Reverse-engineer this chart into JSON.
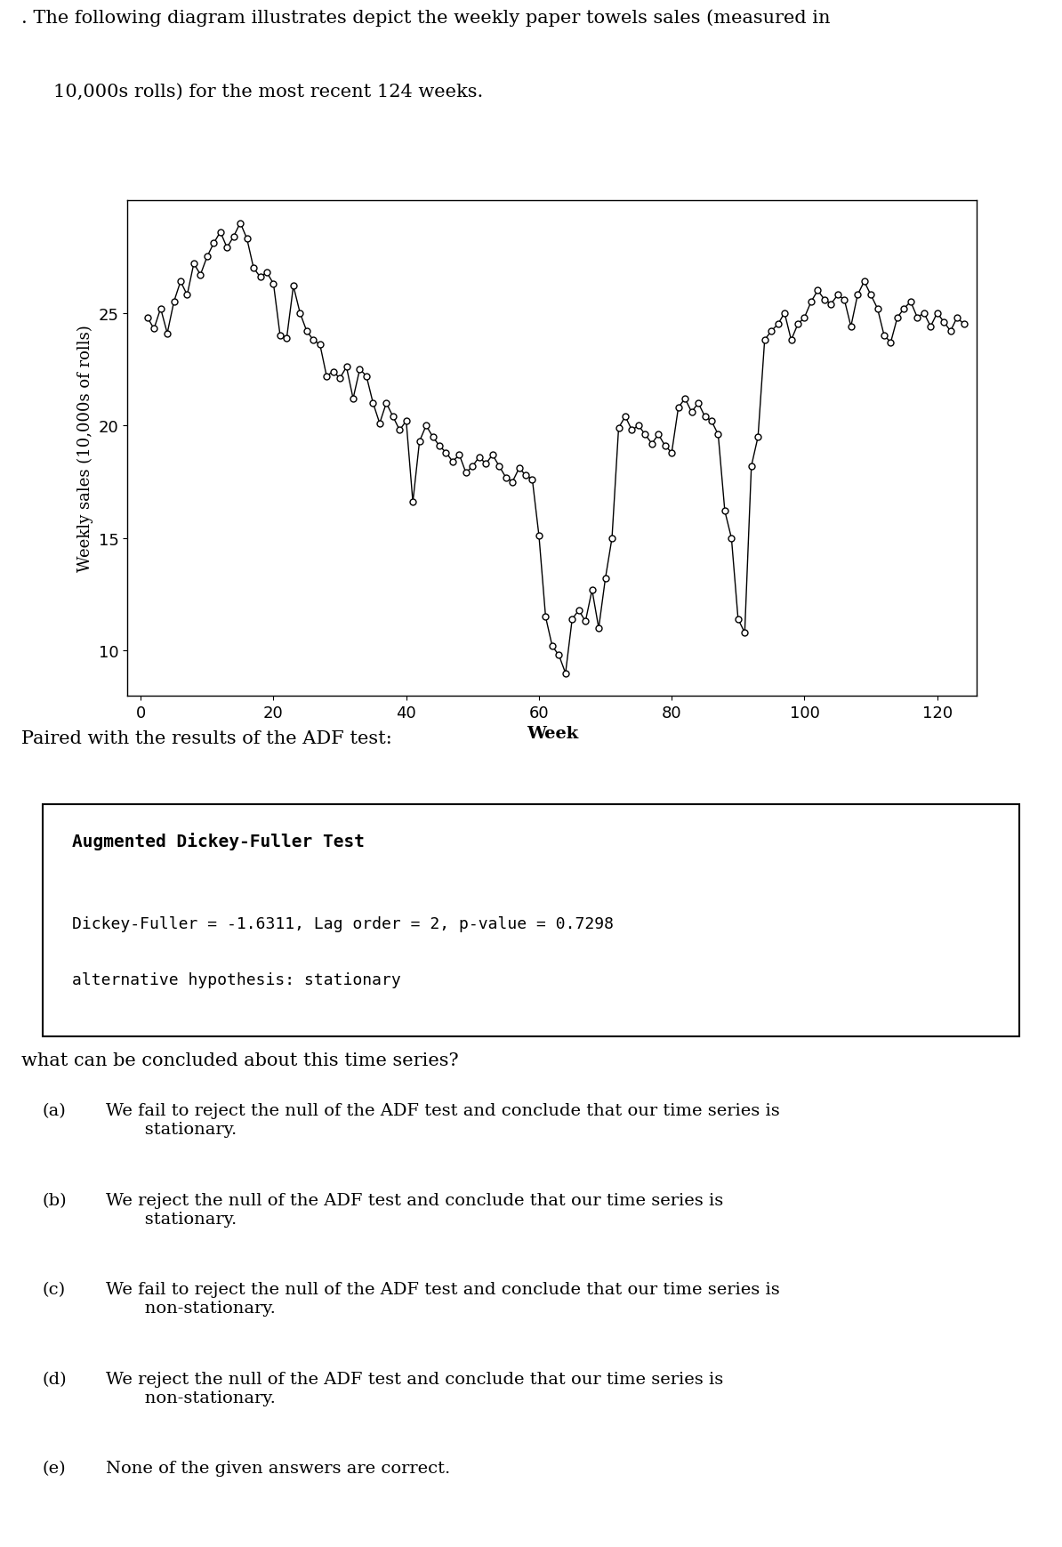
{
  "title_text": ". The following diagram illustrates depict the weekly paper towels sales (measured in\n  10,000s rolls) for the most recent 124 weeks.",
  "xlabel": "Week",
  "ylabel": "Weekly sales (10,000s of rolls)",
  "xlim": [
    -2,
    126
  ],
  "ylim": [
    8,
    30
  ],
  "yticks": [
    10,
    15,
    20,
    25
  ],
  "xticks": [
    0,
    20,
    40,
    60,
    80,
    100,
    120
  ],
  "adf_title": "Augmented Dickey-Fuller Test",
  "adf_line1": "Dickey-Fuller = -1.6311, Lag order = 2, p-value = 0.7298",
  "adf_line2": "alternative hypothesis: stationary",
  "question_text": "what can be concluded about this time series?",
  "options": [
    "(a) We fail to reject the null of the ADF test and conclude that our time series is\n      stationary.",
    "(b) We reject the null of the ADF test and conclude that our time series is\n      stationary.",
    "(c) We fail to reject the null of the ADF test and conclude that our time series is\n      non-stationary.",
    "(d) We reject the null of the ADF test and conclude that our time series is\n      non-stationary.",
    "(e) None of the given answers are correct."
  ],
  "y_values": [
    24.8,
    24.3,
    25.2,
    24.1,
    25.5,
    26.4,
    25.8,
    27.2,
    26.7,
    27.5,
    28.1,
    28.6,
    27.9,
    28.4,
    29.0,
    28.3,
    27.0,
    26.6,
    26.8,
    26.3,
    24.0,
    23.9,
    26.2,
    25.0,
    24.2,
    23.8,
    23.6,
    22.2,
    22.4,
    22.1,
    22.6,
    21.2,
    22.5,
    22.2,
    21.0,
    20.1,
    21.0,
    20.4,
    19.8,
    20.2,
    16.6,
    19.3,
    20.0,
    19.5,
    19.1,
    18.8,
    18.4,
    18.7,
    17.9,
    18.2,
    18.6,
    18.3,
    18.7,
    18.2,
    17.7,
    17.5,
    18.1,
    17.8,
    17.6,
    15.1,
    11.5,
    10.2,
    9.8,
    9.0,
    11.4,
    11.8,
    11.3,
    12.7,
    11.0,
    13.2,
    15.0,
    19.9,
    20.4,
    19.8,
    20.0,
    19.6,
    19.2,
    19.6,
    19.1,
    18.8,
    20.8,
    21.2,
    20.6,
    21.0,
    20.4,
    20.2,
    19.6,
    16.2,
    15.0,
    11.4,
    10.8,
    18.2,
    19.5,
    23.8,
    24.2,
    24.5,
    25.0,
    23.8,
    24.5,
    24.8,
    25.5,
    26.0,
    25.6,
    25.4,
    25.8,
    25.6,
    24.4,
    25.8,
    26.4,
    25.8,
    25.2,
    24.0,
    23.7,
    24.8,
    25.2,
    25.5,
    24.8,
    25.0,
    24.4,
    25.0,
    24.6,
    24.2,
    24.8,
    24.5
  ],
  "line_color": "black",
  "marker": "o",
  "marker_facecolor": "white",
  "marker_edgecolor": "black",
  "marker_size": 5,
  "background_color": "white"
}
